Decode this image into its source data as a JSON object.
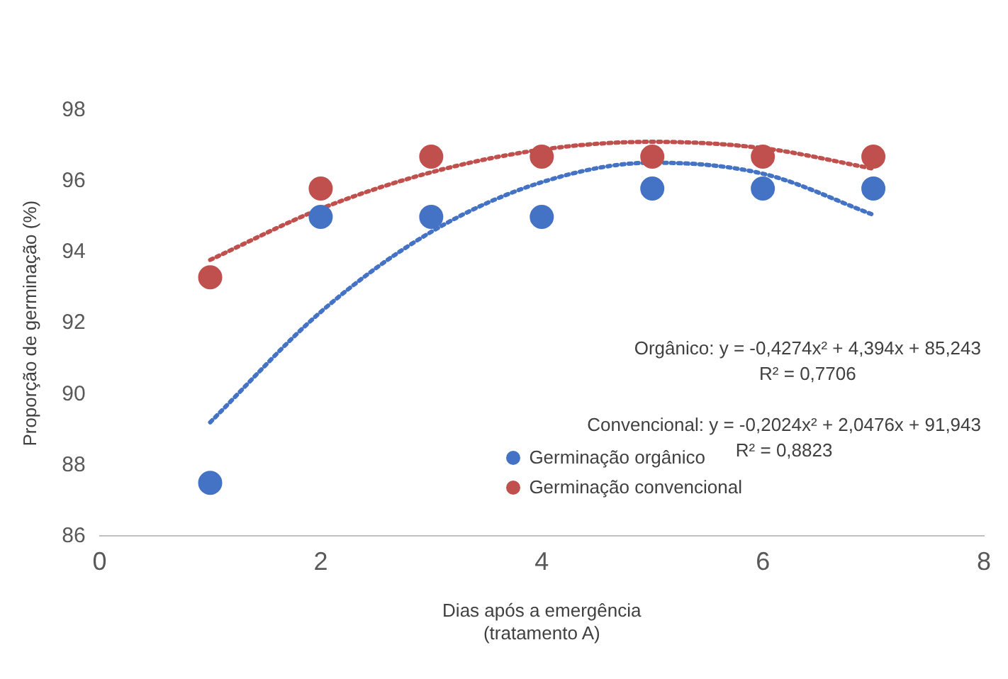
{
  "chart_data": {
    "type": "scatter",
    "xlabel": "Dias após a emergência\n(tratamento A)",
    "ylabel": "Proporção de germinação (%)",
    "xlim": [
      0,
      8
    ],
    "xticks": [
      0,
      2,
      4,
      6,
      8
    ],
    "ylim": [
      86,
      98
    ],
    "yticks": [
      86,
      88,
      90,
      92,
      94,
      96,
      98
    ],
    "grid": false,
    "legend": "right",
    "marker": "circle",
    "series": [
      {
        "name": "Germinação orgânico",
        "color": "#4472c4",
        "x": [
          1,
          2,
          3,
          4,
          5,
          6,
          7
        ],
        "values": [
          87.5,
          95,
          95,
          95,
          95.8,
          95.8,
          95.8
        ]
      },
      {
        "name": "Germinação convencional",
        "color": "#c0504d",
        "x": [
          1,
          2,
          3,
          4,
          5,
          6,
          7
        ],
        "values": [
          93.3,
          95.8,
          96.7,
          96.7,
          96.7,
          96.7,
          96.7
        ]
      },
      {
        "type": "line",
        "color": "#4472c4",
        "line_style": "dotted",
        "marker": "none",
        "x": [
          1,
          2,
          3,
          4,
          5,
          6,
          7
        ],
        "values": [
          89.21,
          92.32,
          94.58,
          95.98,
          96.53,
          96.22,
          95.06
        ]
      },
      {
        "type": "line",
        "color": "#c0504d",
        "line_style": "dotted",
        "marker": "none",
        "x": [
          1,
          2,
          3,
          4,
          5,
          6,
          7
        ],
        "values": [
          93.79,
          95.23,
          96.26,
          96.9,
          97.12,
          96.94,
          96.36
        ]
      }
    ],
    "annotations": [
      "Orgânico: y = -0,4274x² + 4,394x + 85,243\nR² = 0,7706",
      "Convencional: y = -0,2024x² + 2,0476x + 91,943\nR² = 0,8823"
    ]
  }
}
